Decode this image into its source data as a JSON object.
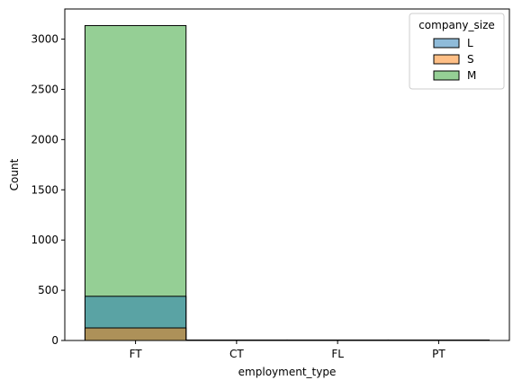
{
  "chart_data": {
    "type": "bar",
    "categories": [
      "FT",
      "CT",
      "FL",
      "PT"
    ],
    "xlabel": "employment_type",
    "ylabel": "Count",
    "ylim": [
      0,
      3300
    ],
    "yticks": [
      "0",
      "500",
      "1000",
      "1500",
      "2000",
      "2500",
      "3000"
    ],
    "ytick_values": [
      0,
      500,
      1000,
      1500,
      2000,
      2500,
      3000
    ],
    "grid": false,
    "legend": {
      "title": "company_size",
      "placement": "top-right"
    },
    "series": [
      {
        "name": "L",
        "color": "#1f77b4",
        "values": [
          440,
          5,
          5,
          5
        ]
      },
      {
        "name": "S",
        "color": "#ff7f0e",
        "values": [
          125,
          3,
          3,
          3
        ]
      },
      {
        "name": "M",
        "color": "#2ca02c",
        "values": [
          3135,
          4,
          4,
          4
        ]
      }
    ],
    "draw_order": [
      "M",
      "L",
      "S"
    ],
    "alpha": 0.5
  }
}
